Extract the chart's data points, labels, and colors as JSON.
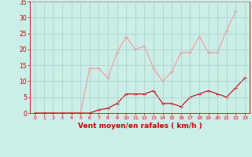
{
  "x": [
    0,
    1,
    2,
    3,
    4,
    5,
    6,
    7,
    8,
    9,
    10,
    11,
    12,
    13,
    14,
    15,
    16,
    17,
    18,
    19,
    20,
    21,
    22,
    23
  ],
  "rafales": [
    0,
    0,
    0,
    0,
    0,
    0,
    14,
    14,
    11,
    19,
    24,
    20,
    21,
    14,
    10,
    13,
    19,
    19,
    24,
    19,
    19,
    26,
    32,
    null
  ],
  "moyen": [
    0,
    0,
    0,
    0,
    0,
    0,
    0,
    1,
    1.5,
    3,
    6,
    6,
    6,
    7,
    3,
    3,
    2,
    5,
    6,
    7,
    6,
    5,
    8,
    11
  ],
  "bg_color": "#cceee8",
  "grid_color": "#aacccc",
  "line_color_rafales": "#f09898",
  "line_color_moyen": "#cc0000",
  "xlabel": "Vent moyen/en rafales ( km/h )",
  "ylim": [
    0,
    35
  ],
  "xlim": [
    -0.5,
    23.5
  ],
  "yticks": [
    0,
    5,
    10,
    15,
    20,
    25,
    30,
    35
  ],
  "xticks": [
    0,
    1,
    2,
    3,
    4,
    5,
    6,
    7,
    8,
    9,
    10,
    11,
    12,
    13,
    14,
    15,
    16,
    17,
    18,
    19,
    20,
    21,
    22,
    23
  ]
}
